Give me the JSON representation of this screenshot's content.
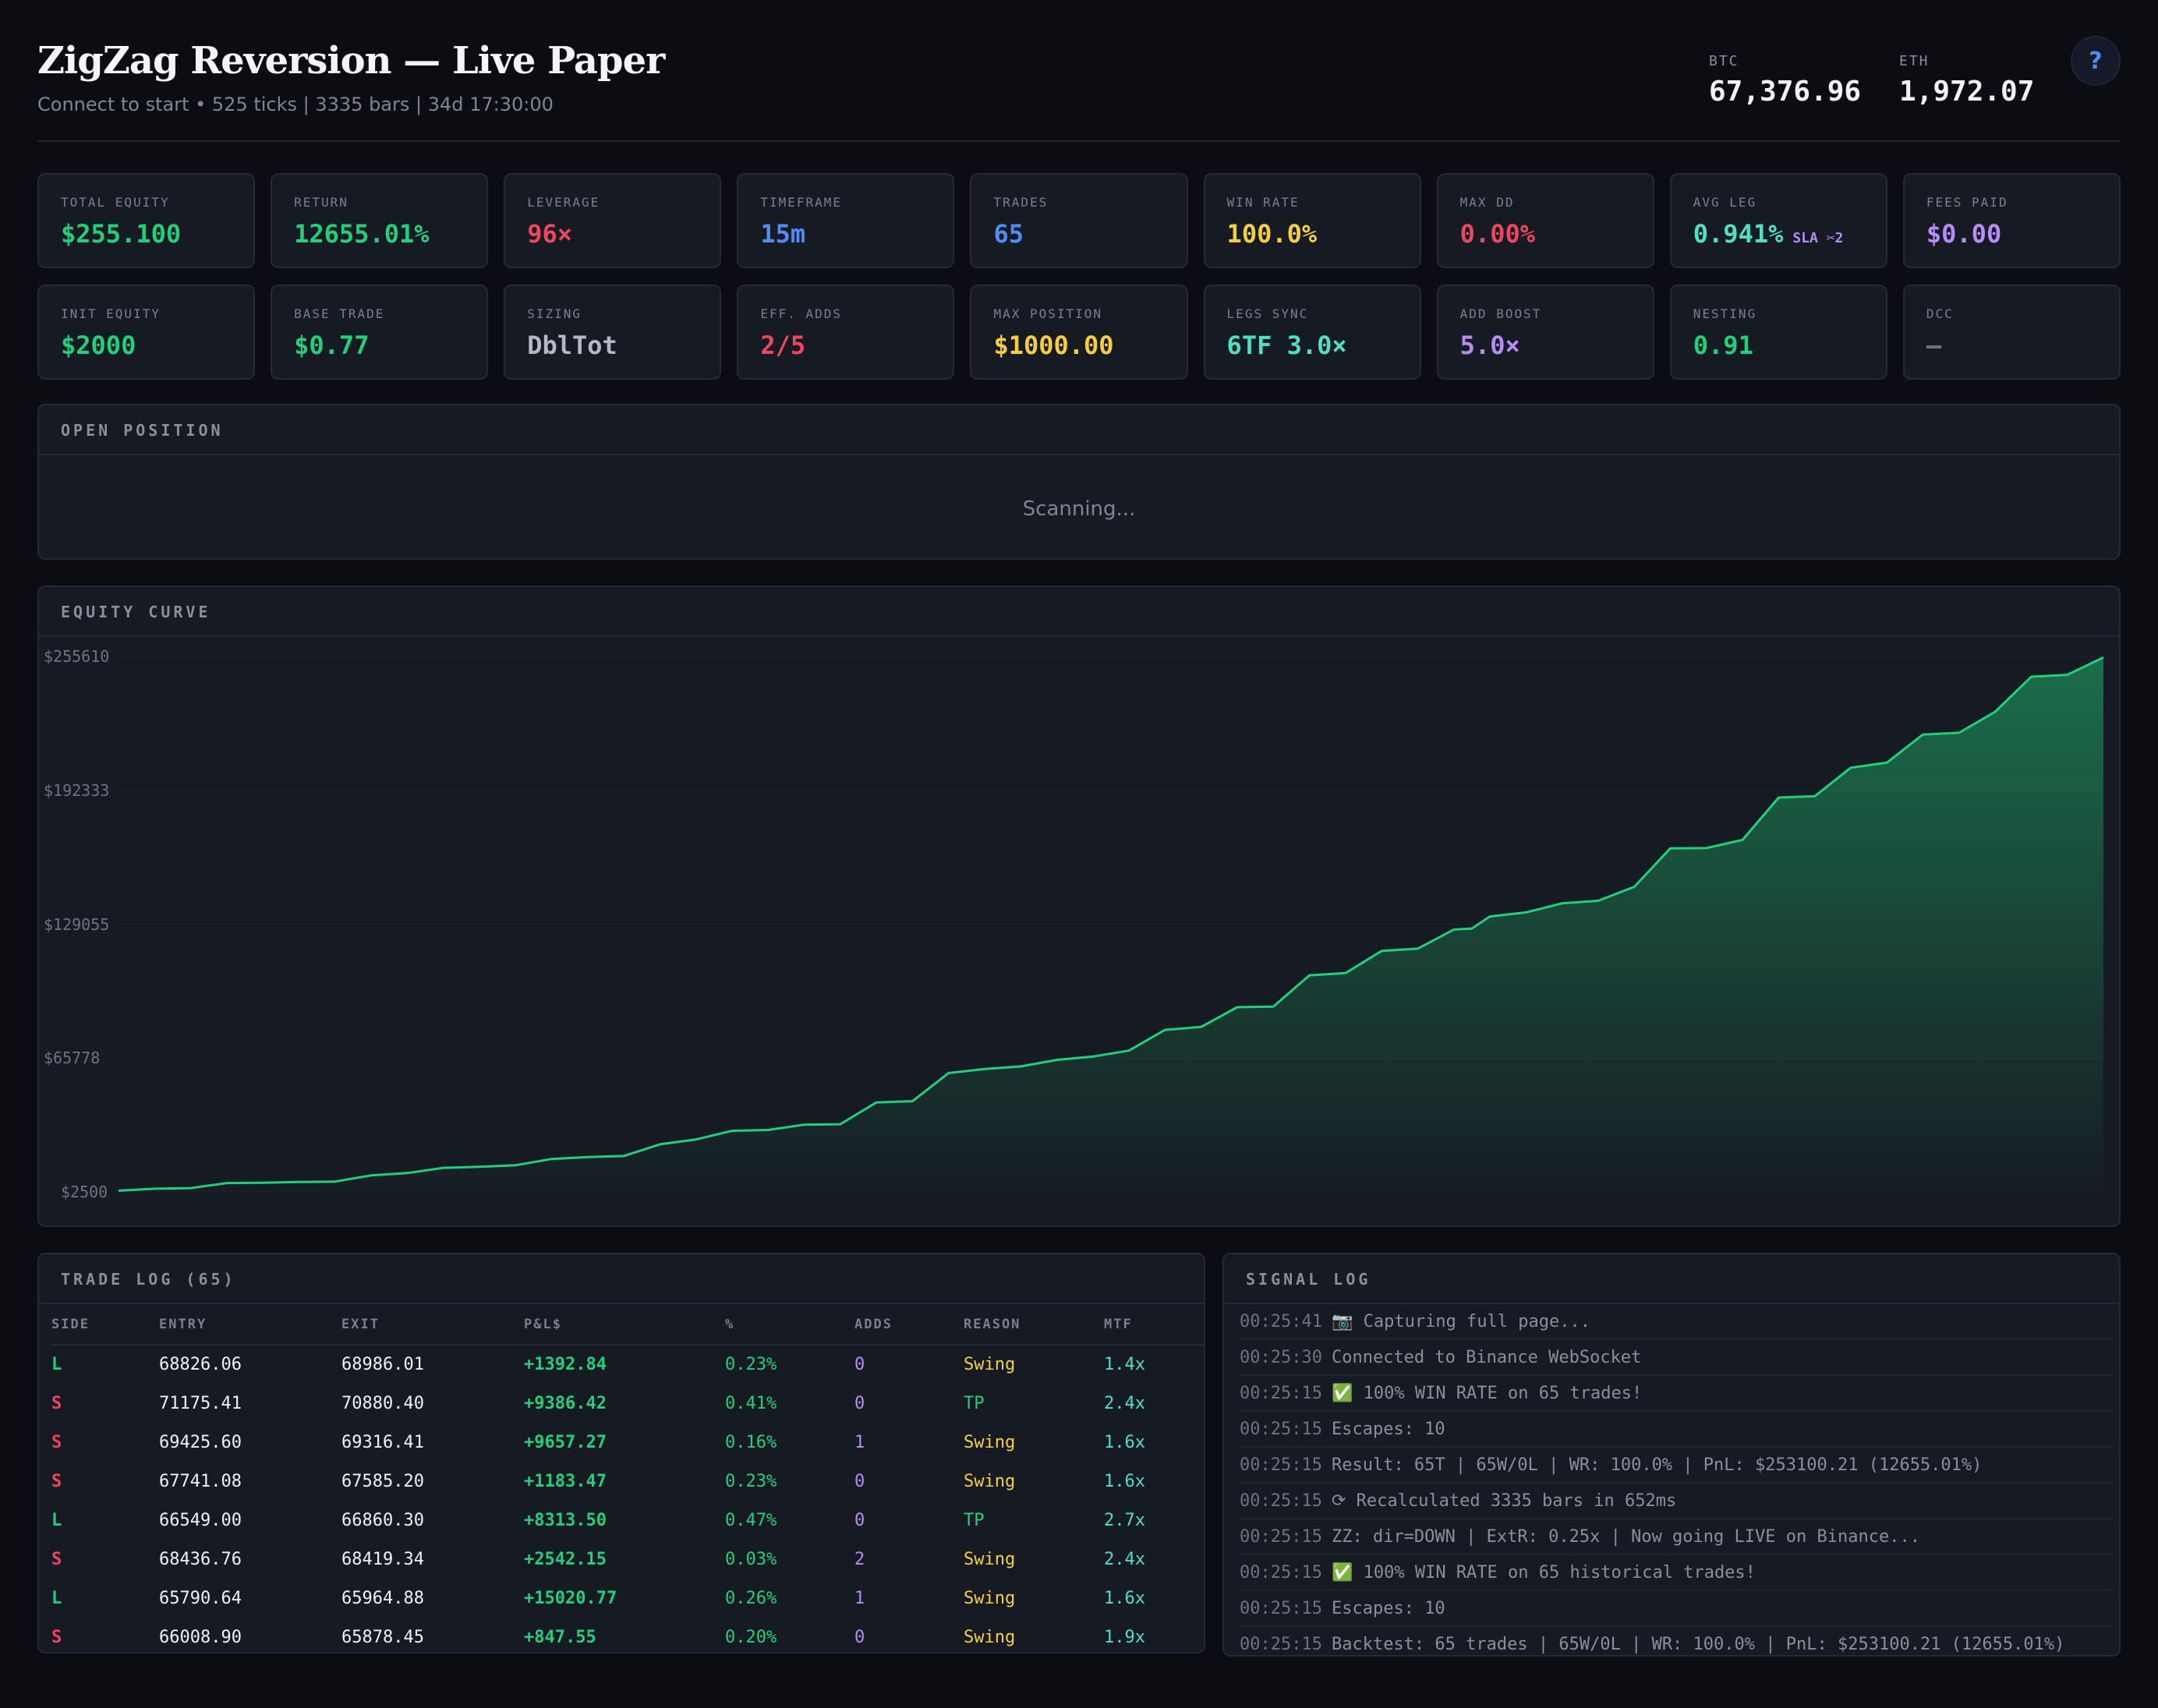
{
  "header": {
    "title": "ZigZag Reversion — Live Paper",
    "subtitle": "Connect to start • 525 ticks | 3335 bars | 34d 17:30:00",
    "tickers": [
      {
        "label": "BTC",
        "value": "67,376.96"
      },
      {
        "label": "ETH",
        "value": "1,972.07"
      }
    ],
    "help_label": "?"
  },
  "stats_row1": [
    {
      "label": "TOTAL EQUITY",
      "value": "$255.100",
      "color": "#22d07a"
    },
    {
      "label": "RETURN",
      "value": "12655.01%",
      "color": "#22d07a"
    },
    {
      "label": "LEVERAGE",
      "value": "96×",
      "color": "#f0455e"
    },
    {
      "label": "TIMEFRAME",
      "value": "15m",
      "color": "#4f8cf7"
    },
    {
      "label": "TRADES",
      "value": "65",
      "color": "#4f8cf7"
    },
    {
      "label": "WIN RATE",
      "value": "100.0%",
      "color": "#f7cf3e"
    },
    {
      "label": "MAX DD",
      "value": "0.00%",
      "color": "#f0455e"
    },
    {
      "label": "AVG LEG",
      "value": "0.941%",
      "tag": "SLA ✂2",
      "color": "#4fe0c4"
    },
    {
      "label": "FEES PAID",
      "value": "$0.00",
      "color": "#b88cf5"
    }
  ],
  "stats_row2": [
    {
      "label": "INIT EQUITY",
      "value": "$2000",
      "color": "#22d07a"
    },
    {
      "label": "BASE TRADE",
      "value": "$0.77",
      "color": "#22d07a"
    },
    {
      "label": "SIZING",
      "value": "DblTot",
      "color": "#b3b8c2"
    },
    {
      "label": "EFF. ADDS",
      "value": "2/5",
      "color": "#f0455e"
    },
    {
      "label": "MAX POSITION",
      "value": "$1000.00",
      "color": "#f7cf3e"
    },
    {
      "label": "LEGS SYNC",
      "value": "6TF 3.0×",
      "color": "#4fe0c4"
    },
    {
      "label": "ADD BOOST",
      "value": "5.0×",
      "color": "#b88cf5"
    },
    {
      "label": "NESTING",
      "value": "0.91",
      "color": "#22d07a"
    },
    {
      "label": "DCC",
      "value": "—",
      "color": "#6d7380"
    }
  ],
  "open_position": {
    "title": "OPEN POSITION",
    "status": "Scanning..."
  },
  "equity_panel": {
    "title": "EQUITY CURVE"
  },
  "chart_data": {
    "type": "area",
    "title": "EQUITY CURVE",
    "y_ticks": [
      "$255610",
      "$192333",
      "$129055",
      "$65778",
      "$2500"
    ],
    "ylim": [
      2500,
      255610
    ],
    "x": [
      1,
      2,
      3,
      4,
      5,
      6,
      7,
      8,
      9,
      10,
      11,
      12,
      13,
      14,
      15,
      16,
      17,
      18,
      19,
      20,
      21,
      22,
      23,
      24,
      25,
      26,
      27,
      28,
      29,
      30,
      31,
      32,
      33,
      34,
      35,
      36,
      37,
      38,
      38.5,
      39,
      40,
      41,
      42,
      43,
      44,
      45,
      46,
      47,
      48,
      49,
      50,
      51,
      52,
      53,
      54,
      55,
      56
    ],
    "values": [
      3100,
      4000,
      4300,
      6700,
      6800,
      7200,
      7400,
      10300,
      11400,
      13900,
      14400,
      15100,
      18100,
      19000,
      19500,
      25000,
      27300,
      31400,
      31800,
      34300,
      34500,
      44800,
      45400,
      58700,
      60600,
      61800,
      64900,
      66500,
      69300,
      79100,
      80500,
      89800,
      90100,
      104900,
      105900,
      116400,
      117500,
      126500,
      127000,
      132700,
      134600,
      138900,
      140100,
      146700,
      164900,
      165000,
      168900,
      188900,
      189500,
      203000,
      205400,
      218700,
      219500,
      229400,
      246000,
      246900,
      255100
    ],
    "color": "#22d07a",
    "grid": true
  },
  "trade_log": {
    "title": "TRADE LOG (65)",
    "columns": [
      "SIDE",
      "ENTRY",
      "EXIT",
      "P&L$",
      "%",
      "ADDS",
      "REASON",
      "MTF"
    ],
    "rows": [
      {
        "side": "L",
        "entry": "68826.06",
        "exit": "68986.01",
        "pnl": "+1392.84",
        "pct": "0.23%",
        "adds": "0",
        "reason": "Swing",
        "mtf": "1.4x"
      },
      {
        "side": "S",
        "entry": "71175.41",
        "exit": "70880.40",
        "pnl": "+9386.42",
        "pct": "0.41%",
        "adds": "0",
        "reason": "TP",
        "mtf": "2.4x"
      },
      {
        "side": "S",
        "entry": "69425.60",
        "exit": "69316.41",
        "pnl": "+9657.27",
        "pct": "0.16%",
        "adds": "1",
        "reason": "Swing",
        "mtf": "1.6x"
      },
      {
        "side": "S",
        "entry": "67741.08",
        "exit": "67585.20",
        "pnl": "+1183.47",
        "pct": "0.23%",
        "adds": "0",
        "reason": "Swing",
        "mtf": "1.6x"
      },
      {
        "side": "L",
        "entry": "66549.00",
        "exit": "66860.30",
        "pnl": "+8313.50",
        "pct": "0.47%",
        "adds": "0",
        "reason": "TP",
        "mtf": "2.7x"
      },
      {
        "side": "S",
        "entry": "68436.76",
        "exit": "68419.34",
        "pnl": "+2542.15",
        "pct": "0.03%",
        "adds": "2",
        "reason": "Swing",
        "mtf": "2.4x"
      },
      {
        "side": "L",
        "entry": "65790.64",
        "exit": "65964.88",
        "pnl": "+15020.77",
        "pct": "0.26%",
        "adds": "1",
        "reason": "Swing",
        "mtf": "1.6x"
      },
      {
        "side": "S",
        "entry": "66008.90",
        "exit": "65878.45",
        "pnl": "+847.55",
        "pct": "0.20%",
        "adds": "0",
        "reason": "Swing",
        "mtf": "1.9x"
      }
    ]
  },
  "signal_log": {
    "title": "SIGNAL LOG",
    "entries": [
      {
        "time": "00:25:41",
        "text": "📷 Capturing full page..."
      },
      {
        "time": "00:25:30",
        "text": "Connected to Binance WebSocket"
      },
      {
        "time": "00:25:15",
        "text": "✅ 100% WIN RATE on 65 trades!"
      },
      {
        "time": "00:25:15",
        "text": "Escapes: 10"
      },
      {
        "time": "00:25:15",
        "text": "Result: 65T | 65W/0L | WR: 100.0% | PnL: $253100.21 (12655.01%)"
      },
      {
        "time": "00:25:15",
        "text": "⟳ Recalculated 3335 bars in 652ms"
      },
      {
        "time": "00:25:15",
        "text": "ZZ: dir=DOWN | ExtR: 0.25x | Now going LIVE on Binance..."
      },
      {
        "time": "00:25:15",
        "text": "✅ 100% WIN RATE on 65 historical trades!"
      },
      {
        "time": "00:25:15",
        "text": "Escapes: 10"
      },
      {
        "time": "00:25:15",
        "text": "Backtest: 65 trades | 65W/0L | WR: 100.0% | PnL: $253100.21 (12655.01%)"
      }
    ]
  },
  "colors": {
    "long": "#22d07a",
    "short": "#f0455e",
    "pnl": "#22d07a",
    "adds": "#b88cf5",
    "swing": "#f7cf3e",
    "tp": "#22d07a",
    "mtf": "#4fe0c4"
  }
}
